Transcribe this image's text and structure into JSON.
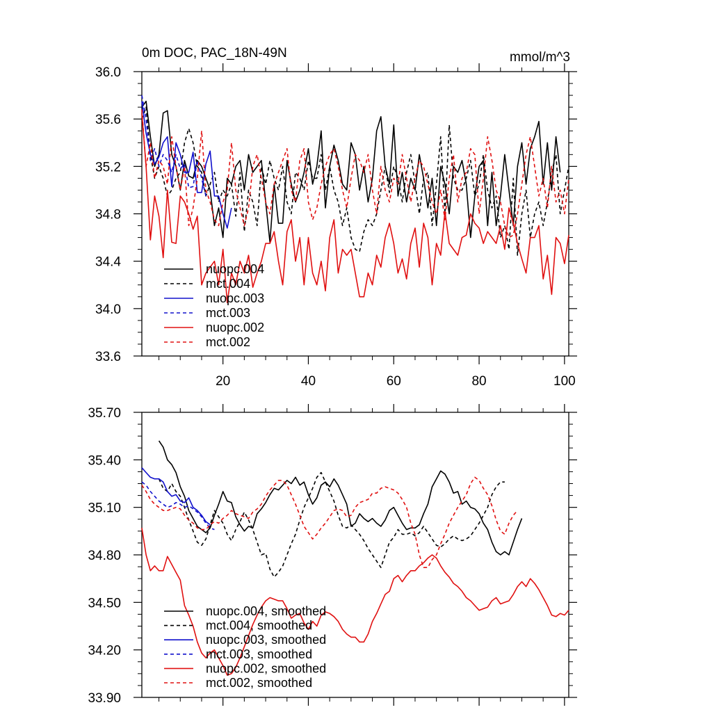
{
  "chart_data": [
    {
      "type": "line",
      "title": "0m DOC, PAC_18N-49N",
      "units": "mmol/m^3",
      "xlabel": "",
      "ylabel": "",
      "xlim": [
        1,
        101
      ],
      "ylim": [
        33.6,
        36.0
      ],
      "x_ticks": [
        20,
        40,
        60,
        80,
        100
      ],
      "x_tick_labels": [
        "20",
        "40",
        "60",
        "80",
        "100"
      ],
      "y_ticks": [
        33.6,
        34.0,
        34.4,
        34.8,
        35.2,
        35.6,
        36.0
      ],
      "y_tick_labels": [
        "33.6",
        "34.0",
        "34.4",
        "34.8",
        "35.2",
        "35.6",
        "36.0"
      ],
      "legend_position": "bottom-left",
      "series": [
        {
          "name": "nuopc.004",
          "color": "#000000",
          "dash": "solid",
          "x_start": 1,
          "values": [
            35.7,
            35.75,
            35.45,
            35.2,
            35.3,
            35.65,
            35.67,
            35.3,
            35.2,
            35.0,
            35.25,
            35.12,
            35.1,
            35.25,
            35.2,
            35.1,
            35.0,
            34.7,
            34.85,
            34.6,
            35.1,
            35.05,
            35.2,
            35.25,
            35.0,
            35.3,
            35.15,
            35.2,
            35.25,
            34.9,
            34.56,
            35.05,
            34.72,
            34.72,
            35.25,
            35.05,
            34.9,
            35.0,
            35.15,
            35.35,
            35.05,
            35.2,
            35.5,
            34.85,
            35.2,
            35.38,
            35.25,
            35.05,
            35.0,
            35.4,
            35.3,
            35.0,
            35.2,
            34.9,
            35.1,
            35.5,
            35.62,
            35.2,
            35.05,
            35.55,
            34.95,
            35.15,
            34.9,
            35.1,
            35.0,
            35.3,
            35.1,
            34.85,
            35.1,
            34.7,
            35.2,
            35.05,
            34.8,
            35.2,
            35.15,
            35.25,
            35.05,
            34.6,
            34.95,
            35.2,
            35.25,
            34.7,
            35.15,
            34.7,
            34.95,
            35.3,
            35.0,
            34.7,
            35.2,
            35.4,
            35.05,
            35.35,
            35.45,
            35.58,
            35.05,
            35.4,
            35.0,
            35.45,
            35.15
          ]
        },
        {
          "name": "mct.004",
          "color": "#000000",
          "dash": "dashed",
          "x_start": 1,
          "values": [
            35.6,
            35.7,
            35.3,
            35.1,
            35.2,
            35.1,
            34.95,
            35.0,
            35.1,
            35.15,
            35.4,
            35.52,
            35.4,
            35.2,
            35.15,
            34.95,
            35.05,
            35.15,
            34.9,
            35.0,
            34.95,
            35.05,
            34.78,
            35.15,
            34.65,
            35.0,
            34.9,
            34.7,
            35.2,
            35.05,
            35.25,
            35.1,
            35.0,
            35.2,
            34.9,
            34.8,
            35.15,
            35.1,
            35.0,
            35.25,
            35.1,
            35.1,
            35.3,
            35.0,
            35.2,
            35.0,
            34.9,
            34.7,
            34.85,
            34.6,
            34.5,
            34.48,
            34.65,
            34.75,
            34.7,
            34.8,
            35.0,
            35.2,
            34.98,
            35.2,
            35.1,
            34.9,
            35.15,
            35.3,
            35.05,
            34.8,
            35.1,
            35.15,
            34.7,
            35.05,
            35.45,
            34.8,
            35.55,
            35.1,
            35.0,
            35.0,
            35.1,
            35.25,
            34.95,
            35.05,
            35.3,
            35.0,
            34.85,
            34.95,
            34.6,
            34.7,
            34.5,
            35.1,
            34.45,
            34.8,
            35.0,
            34.6,
            34.8,
            34.9,
            34.7,
            34.9,
            35.15,
            35.3,
            34.8,
            35.0,
            35.2
          ]
        },
        {
          "name": "nuopc.003",
          "color": "#1010cc",
          "dash": "solid",
          "x_start": 1,
          "values": [
            35.75,
            35.48,
            35.3,
            35.22,
            35.28,
            35.4,
            35.45,
            35.03,
            35.4,
            35.3,
            35.15,
            35.15,
            35.32,
            34.98,
            34.98,
            35.22,
            35.33,
            34.95,
            34.95,
            34.8,
            34.68,
            34.85
          ]
        },
        {
          "name": "mct.003",
          "color": "#1010cc",
          "dash": "dashed",
          "x_start": 1,
          "values": [
            35.8,
            35.6,
            35.25,
            35.35,
            35.2,
            35.3,
            35.25,
            35.15,
            35.3,
            35.18,
            35.22,
            35.02,
            35.03,
            35.25,
            35.1,
            34.95
          ]
        },
        {
          "name": "nuopc.002",
          "color": "#e01010",
          "dash": "solid",
          "x_start": 1,
          "values": [
            35.65,
            35.2,
            34.58,
            34.95,
            34.78,
            34.43,
            35.0,
            34.56,
            34.55,
            34.95,
            34.9,
            34.8,
            34.67,
            34.78,
            34.2,
            34.3,
            34.35,
            34.4,
            34.2,
            34.5,
            34.05,
            34.3,
            34.2,
            34.4,
            34.3,
            34.45,
            34.18,
            34.3,
            34.4,
            34.55,
            34.55,
            34.65,
            34.4,
            34.2,
            34.65,
            34.75,
            34.4,
            34.6,
            34.2,
            34.6,
            34.3,
            34.2,
            34.4,
            34.15,
            34.6,
            34.75,
            34.3,
            34.5,
            34.45,
            34.5,
            34.3,
            34.1,
            34.1,
            34.3,
            34.2,
            34.45,
            34.35,
            34.6,
            34.72,
            34.55,
            34.3,
            34.42,
            34.25,
            34.55,
            34.68,
            34.35,
            34.72,
            34.6,
            34.2,
            34.55,
            34.45,
            34.82,
            34.55,
            34.5,
            34.45,
            34.6,
            34.62,
            34.8,
            34.72,
            34.68,
            34.55,
            34.65,
            34.6,
            34.55,
            34.7,
            34.5,
            34.85,
            34.72,
            34.55,
            34.42,
            34.3,
            34.6,
            34.6,
            34.7,
            34.25,
            34.45,
            34.12,
            34.6,
            34.55,
            34.38,
            34.62
          ]
        },
        {
          "name": "mct.002",
          "color": "#e01010",
          "dash": "dashed",
          "x_start": 1,
          "values": [
            35.68,
            35.2,
            35.4,
            35.1,
            35.25,
            35.2,
            35.05,
            35.45,
            35.2,
            35.0,
            35.2,
            34.7,
            34.85,
            35.1,
            35.5,
            35.0,
            34.9,
            34.75,
            34.7,
            34.9,
            35.0,
            35.4,
            35.0,
            34.85,
            34.7,
            34.85,
            35.2,
            35.3,
            35.1,
            34.9,
            34.8,
            35.05,
            35.15,
            35.25,
            35.35,
            35.0,
            34.9,
            35.25,
            35.35,
            34.9,
            34.75,
            34.85,
            35.05,
            35.2,
            35.3,
            35.35,
            35.2,
            35.0,
            34.85,
            35.1,
            35.3,
            35.25,
            35.15,
            35.3,
            35.0,
            34.8,
            35.2,
            35.0,
            34.9,
            35.1,
            35.05,
            35.3,
            35.1,
            34.9,
            35.1,
            35.25,
            35.2,
            35.05,
            34.9,
            34.8,
            35.0,
            34.75,
            35.1,
            35.3,
            34.9,
            35.1,
            35.15,
            35.35,
            35.3,
            34.8,
            35.1,
            35.45,
            35.25,
            35.0,
            34.9,
            34.7,
            34.6,
            34.62,
            34.8,
            35.05,
            35.3,
            35.45,
            35.2,
            34.95,
            35.1,
            34.85,
            35.2,
            34.9,
            35.0,
            34.8,
            35.1
          ]
        }
      ]
    },
    {
      "type": "line",
      "title": "",
      "xlabel": "",
      "ylabel": "",
      "xlim": [
        1,
        101
      ],
      "ylim": [
        33.9,
        35.7
      ],
      "x_ticks": [
        20,
        40,
        60,
        80,
        100
      ],
      "x_tick_labels": [
        "",
        "",
        "",
        "",
        ""
      ],
      "y_ticks": [
        33.9,
        34.2,
        34.5,
        34.8,
        35.1,
        35.4,
        35.7
      ],
      "y_tick_labels": [
        "33.90",
        "34.20",
        "34.50",
        "34.80",
        "35.10",
        "35.40",
        "35.70"
      ],
      "legend_position": "bottom-left",
      "series": [
        {
          "name": "nuopc.004, smoothed",
          "color": "#000000",
          "dash": "solid",
          "x_start": 5,
          "values": [
            35.52,
            35.48,
            35.4,
            35.37,
            35.32,
            35.23,
            35.17,
            35.08,
            35.03,
            34.98,
            34.96,
            34.94,
            34.97,
            35.05,
            35.12,
            35.2,
            35.14,
            35.13,
            35.04,
            34.99,
            34.95,
            34.98,
            34.97,
            35.06,
            35.09,
            35.13,
            35.18,
            35.22,
            35.21,
            35.24,
            35.27,
            35.25,
            35.29,
            35.24,
            35.26,
            35.18,
            35.12,
            35.16,
            35.24,
            35.26,
            35.23,
            35.28,
            35.24,
            35.18,
            35.12,
            34.98,
            35.0,
            35.06,
            35.03,
            35.01,
            35.03,
            35.0,
            34.98,
            35.02,
            35.08,
            35.1,
            35.05,
            35.0,
            34.96,
            34.97,
            34.97,
            34.99,
            35.06,
            35.12,
            35.23,
            35.28,
            35.33,
            35.31,
            35.26,
            35.19,
            35.2,
            35.12,
            35.14,
            35.1,
            35.09,
            35.06,
            35.0,
            34.96,
            34.88,
            34.82,
            34.8,
            34.82,
            34.8,
            34.88,
            34.96,
            35.03
          ]
        },
        {
          "name": "mct.004, smoothed",
          "color": "#000000",
          "dash": "dashed",
          "x_start": 5,
          "values": [
            35.28,
            35.22,
            35.2,
            35.25,
            35.2,
            35.17,
            35.1,
            35.02,
            34.95,
            34.88,
            34.86,
            34.9,
            34.99,
            35.08,
            35.04,
            35.0,
            34.93,
            34.89,
            34.96,
            35.01,
            35.07,
            35.02,
            34.96,
            34.88,
            34.8,
            34.81,
            34.71,
            34.66,
            34.69,
            34.73,
            34.8,
            34.87,
            34.93,
            35.02,
            35.1,
            35.16,
            35.22,
            35.29,
            35.32,
            35.26,
            35.2,
            35.14,
            35.05,
            34.98,
            34.97,
            34.99,
            34.96,
            34.93,
            34.89,
            34.84,
            34.8,
            34.76,
            34.72,
            34.8,
            34.88,
            34.91,
            34.96,
            34.93,
            34.93,
            34.94,
            34.92,
            34.94,
            34.98,
            34.94,
            34.9,
            34.86,
            34.85,
            34.87,
            34.9,
            34.92,
            34.9,
            34.89,
            34.9,
            34.92,
            34.96,
            35.0,
            35.05,
            35.1,
            35.18,
            35.23,
            35.26,
            35.26
          ]
        },
        {
          "name": "nuopc.003, smoothed",
          "color": "#1010cc",
          "dash": "solid",
          "x_start": 1,
          "values": [
            35.35,
            35.32,
            35.29,
            35.28,
            35.28,
            35.26,
            35.2,
            35.17,
            35.18,
            35.14,
            35.13,
            35.16,
            35.1,
            35.08,
            35.05,
            35.01,
            34.99
          ]
        },
        {
          "name": "mct.003, smoothed",
          "color": "#1010cc",
          "dash": "dashed",
          "x_start": 1,
          "values": [
            35.26,
            35.24,
            35.2,
            35.17,
            35.14,
            35.12,
            35.1,
            35.11,
            35.13,
            35.12,
            35.1,
            35.11,
            35.09,
            35.07,
            35.04,
            35.0,
            34.97,
            34.96
          ]
        },
        {
          "name": "nuopc.002, smoothed",
          "color": "#e01010",
          "dash": "solid",
          "x_start": 1,
          "values": [
            34.97,
            34.8,
            34.7,
            34.73,
            34.7,
            34.7,
            34.79,
            34.74,
            34.69,
            34.64,
            34.48,
            34.42,
            34.35,
            34.25,
            34.18,
            34.15,
            34.18,
            34.2,
            34.15,
            34.1,
            34.04,
            34.05,
            34.09,
            34.15,
            34.22,
            34.29,
            34.36,
            34.42,
            34.47,
            34.51,
            34.53,
            34.52,
            34.51,
            34.51,
            34.46,
            34.4,
            34.42,
            34.43,
            34.37,
            34.33,
            34.38,
            34.35,
            34.42,
            34.44,
            34.43,
            34.41,
            34.38,
            34.33,
            34.3,
            34.28,
            34.28,
            34.25,
            34.25,
            34.3,
            34.38,
            34.43,
            34.49,
            34.55,
            34.57,
            34.65,
            34.67,
            34.63,
            34.67,
            34.7,
            34.7,
            34.73,
            34.75,
            34.78,
            34.8,
            34.78,
            34.73,
            34.69,
            34.66,
            34.62,
            34.6,
            34.57,
            34.53,
            34.51,
            34.48,
            34.45,
            34.46,
            34.47,
            34.51,
            34.53,
            34.49,
            34.5,
            34.51,
            34.55,
            34.6,
            34.63,
            34.6,
            34.65,
            34.62,
            34.58,
            34.53,
            34.48,
            34.42,
            34.41,
            34.43,
            34.42,
            34.45
          ]
        },
        {
          "name": "mct.002, smoothed",
          "color": "#e01010",
          "dash": "dashed",
          "x_start": 1,
          "values": [
            35.24,
            35.2,
            35.15,
            35.12,
            35.1,
            35.08,
            35.08,
            35.09,
            35.1,
            35.09,
            35.05,
            35.02,
            35.0,
            34.97,
            34.96,
            34.96,
            34.99,
            35.01,
            35.0,
            35.03,
            35.05,
            35.08,
            35.06,
            35.05,
            35.04,
            35.03,
            35.07,
            35.09,
            35.12,
            35.17,
            35.21,
            35.24,
            35.27,
            35.27,
            35.24,
            35.18,
            35.12,
            35.05,
            34.98,
            34.94,
            34.9,
            34.93,
            34.97,
            35.0,
            35.04,
            35.08,
            35.09,
            35.08,
            35.04,
            35.05,
            35.1,
            35.13,
            35.14,
            35.15,
            35.19,
            35.19,
            35.22,
            35.23,
            35.22,
            35.21,
            35.19,
            35.15,
            35.1,
            35.0,
            34.93,
            34.8,
            34.72,
            34.72,
            34.77,
            34.8,
            34.87,
            34.93,
            35.0,
            35.05,
            35.1,
            35.14,
            35.18,
            35.25,
            35.29,
            35.27,
            35.22,
            35.18,
            35.11,
            35.02,
            34.95,
            34.93,
            35.0,
            35.05,
            35.08
          ]
        }
      ]
    }
  ]
}
